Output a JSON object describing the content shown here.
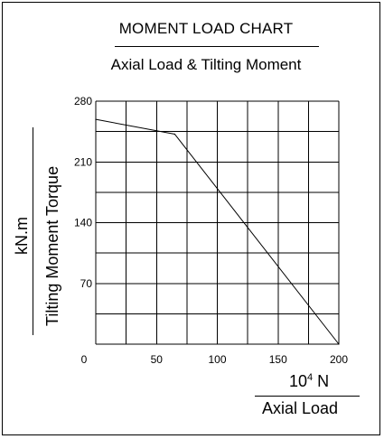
{
  "chart_data": {
    "type": "line",
    "title": "MOMENT LOAD CHART",
    "subtitle": "Axial Load & Tilting Moment",
    "xlabel": "Axial Load",
    "xunit": "10⁴ N",
    "ylabel": "Tilting Moment Torque",
    "yunit": "kN.m",
    "xlim": [
      0,
      200
    ],
    "ylim": [
      0,
      280
    ],
    "x_ticks": [
      "0",
      "50",
      "100",
      "150",
      "200"
    ],
    "y_ticks": [
      "70",
      "140",
      "210",
      "280"
    ],
    "grid": true,
    "series": [
      {
        "x": [
          0,
          65,
          200
        ],
        "y": [
          259,
          242,
          0
        ]
      }
    ]
  }
}
